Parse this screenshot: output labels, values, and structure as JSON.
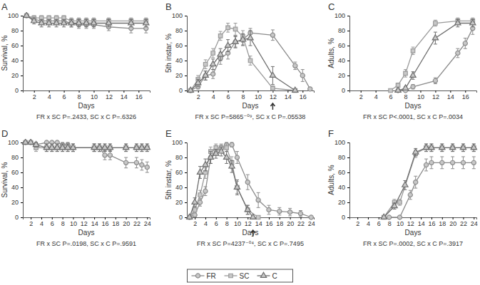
{
  "chart_data": [
    {
      "type": "line",
      "title": "A",
      "y_label": "Survival, %",
      "x_label": "Days",
      "subtitle": "FR x SC P=.2433, SC x C P=.6326",
      "xlim": [
        0.5,
        17.5
      ],
      "xticks": [
        2,
        4,
        6,
        8,
        10,
        12,
        14,
        16
      ],
      "ylim": [
        0,
        100
      ],
      "yticks": [
        0,
        20,
        40,
        60,
        80,
        100
      ],
      "series": [
        {
          "name": "FR",
          "color": "#8c8c8c",
          "marker": "circle",
          "x": [
            1,
            2,
            3,
            4,
            5,
            6,
            7,
            8,
            9,
            10,
            12,
            15,
            17
          ],
          "values": [
            100,
            95,
            93,
            93,
            93,
            93,
            90,
            88,
            88,
            88,
            85,
            83,
            83
          ],
          "errors": [
            0,
            3,
            4,
            4,
            4,
            4,
            5,
            5,
            5,
            5,
            5,
            6,
            6
          ]
        },
        {
          "name": "SC",
          "color": "#9a9a9a",
          "marker": "square",
          "x": [
            1,
            2,
            3,
            4,
            5,
            6,
            7,
            8,
            9,
            10,
            12,
            15,
            17
          ],
          "values": [
            100,
            97,
            97,
            97,
            97,
            97,
            93,
            93,
            93,
            93,
            93,
            93,
            93
          ],
          "errors": [
            0,
            3,
            3,
            3,
            3,
            3,
            4,
            4,
            4,
            4,
            4,
            4,
            4
          ]
        },
        {
          "name": "C",
          "color": "#6e6e6e",
          "marker": "triangle",
          "x": [
            1,
            2,
            3,
            4,
            5,
            6,
            7,
            8,
            9,
            10,
            12,
            15,
            17
          ],
          "values": [
            100,
            93,
            90,
            90,
            90,
            90,
            90,
            90,
            90,
            90,
            90,
            90,
            90
          ],
          "errors": [
            0,
            4,
            5,
            5,
            5,
            5,
            5,
            5,
            5,
            5,
            5,
            5,
            5
          ]
        }
      ]
    },
    {
      "type": "line",
      "title": "B",
      "y_label": "5th instar, %",
      "x_label": "Days",
      "subtitle": "FR x SC P=5865⁻⁰⁹, SC x C P=.05538",
      "arrow_x": 12,
      "xlim": [
        0.5,
        17.5
      ],
      "xticks": [
        2,
        4,
        6,
        8,
        10,
        12,
        14,
        16
      ],
      "ylim": [
        0,
        100
      ],
      "yticks": [
        0,
        20,
        40,
        60,
        80,
        100
      ],
      "series": [
        {
          "name": "FR",
          "color": "#8c8c8c",
          "marker": "circle",
          "x": [
            1,
            2,
            3,
            4,
            5,
            6,
            7,
            8,
            9,
            12,
            15,
            16,
            17
          ],
          "values": [
            0,
            5,
            20,
            22,
            43,
            50,
            65,
            68,
            77,
            74,
            33,
            20,
            2
          ],
          "errors": [
            0,
            3,
            6,
            6,
            8,
            8,
            7,
            7,
            6,
            7,
            5,
            8,
            2
          ]
        },
        {
          "name": "SC",
          "color": "#9a9a9a",
          "marker": "square",
          "x": [
            1,
            2,
            3,
            4,
            5,
            6,
            7,
            8,
            9,
            12,
            15
          ],
          "values": [
            0,
            15,
            35,
            50,
            73,
            84,
            82,
            72,
            40,
            3,
            0
          ],
          "errors": [
            0,
            5,
            6,
            6,
            6,
            6,
            8,
            8,
            6,
            3,
            0
          ]
        },
        {
          "name": "C",
          "color": "#6e6e6e",
          "marker": "triangle",
          "x": [
            1,
            2,
            3,
            4,
            5,
            6,
            7,
            8,
            9,
            12,
            15
          ],
          "values": [
            0,
            10,
            20,
            35,
            48,
            60,
            65,
            68,
            70,
            20,
            0
          ],
          "errors": [
            0,
            5,
            6,
            7,
            8,
            8,
            8,
            8,
            10,
            12,
            0
          ]
        }
      ]
    },
    {
      "type": "line",
      "title": "C",
      "y_label": "Adults, %",
      "x_label": "Days",
      "subtitle": "FR x SC P<.0001, SC x C P=.0034",
      "xlim": [
        0.5,
        17.5
      ],
      "xticks": [
        2,
        4,
        6,
        8,
        10,
        12,
        14,
        16
      ],
      "ylim": [
        0,
        100
      ],
      "yticks": [
        0,
        20,
        40,
        60,
        80,
        100
      ],
      "series": [
        {
          "name": "FR",
          "color": "#8c8c8c",
          "marker": "circle",
          "x": [
            7,
            8,
            9,
            12,
            15,
            16,
            17
          ],
          "values": [
            0,
            0,
            5,
            13,
            50,
            63,
            83
          ],
          "errors": [
            0,
            0,
            3,
            4,
            6,
            7,
            8
          ]
        },
        {
          "name": "SC",
          "color": "#9a9a9a",
          "marker": "square",
          "x": [
            6,
            7,
            8,
            9,
            12,
            15,
            17
          ],
          "values": [
            0,
            7,
            23,
            53,
            90,
            93,
            93
          ],
          "errors": [
            0,
            3,
            5,
            5,
            4,
            4,
            4
          ]
        },
        {
          "name": "C",
          "color": "#6e6e6e",
          "marker": "triangle",
          "x": [
            7,
            8,
            9,
            12,
            15,
            17
          ],
          "values": [
            0,
            3,
            20,
            70,
            90,
            90
          ],
          "errors": [
            0,
            2,
            5,
            8,
            5,
            5
          ]
        }
      ]
    },
    {
      "type": "line",
      "title": "D",
      "y_label": "Survival, %",
      "x_label": "Days",
      "subtitle": "FR x SC P=.0198, SC x C P=.9591",
      "xlim": [
        0.5,
        24.5
      ],
      "xticks": [
        2,
        4,
        6,
        8,
        10,
        12,
        14,
        16,
        18,
        20,
        22,
        24
      ],
      "ylim": [
        0,
        100
      ],
      "yticks": [
        0,
        20,
        40,
        60,
        80,
        100
      ],
      "series": [
        {
          "name": "FR",
          "color": "#8c8c8c",
          "marker": "circle",
          "x": [
            1,
            2,
            3,
            5,
            6,
            7,
            8,
            9,
            10,
            14,
            15,
            16,
            17,
            20,
            22,
            23,
            24
          ],
          "values": [
            100,
            100,
            97,
            100,
            100,
            100,
            97,
            97,
            93,
            93,
            93,
            83,
            83,
            73,
            73,
            70,
            67
          ],
          "errors": [
            0,
            0,
            3,
            0,
            0,
            0,
            3,
            3,
            5,
            5,
            5,
            6,
            6,
            7,
            7,
            7,
            7
          ]
        },
        {
          "name": "SC",
          "color": "#9a9a9a",
          "marker": "square",
          "x": [
            1,
            2,
            3,
            5,
            6,
            7,
            8,
            9,
            10,
            14,
            15,
            16,
            17,
            20,
            22,
            23,
            24
          ],
          "values": [
            100,
            100,
            93,
            93,
            93,
            93,
            93,
            93,
            93,
            93,
            93,
            93,
            93,
            93,
            93,
            93,
            93
          ],
          "errors": [
            0,
            0,
            5,
            5,
            5,
            5,
            5,
            5,
            5,
            5,
            5,
            5,
            5,
            5,
            5,
            5,
            5
          ]
        },
        {
          "name": "C",
          "color": "#6e6e6e",
          "marker": "triangle",
          "x": [
            1,
            2,
            3,
            5,
            6,
            7,
            8,
            9,
            10,
            14,
            15,
            16,
            17,
            20,
            22,
            23,
            24
          ],
          "values": [
            100,
            100,
            97,
            93,
            93,
            93,
            93,
            93,
            93,
            93,
            93,
            93,
            93,
            93,
            93,
            93,
            93
          ],
          "errors": [
            0,
            0,
            3,
            5,
            5,
            5,
            5,
            5,
            5,
            5,
            5,
            5,
            5,
            5,
            5,
            5,
            5
          ]
        }
      ]
    },
    {
      "type": "line",
      "title": "E",
      "y_label": "5th instar, %",
      "x_label": "Days",
      "subtitle": "FR x SC P=4237⁻⁰⁴, SC x C P=.7495",
      "arrow_x": 13,
      "legend": "bottom",
      "xlim": [
        0.5,
        24.5
      ],
      "xticks": [
        2,
        4,
        6,
        8,
        10,
        12,
        14,
        16,
        18,
        20,
        22,
        24
      ],
      "ylim": [
        0,
        100
      ],
      "yticks": [
        0,
        20,
        40,
        60,
        80,
        100
      ],
      "series": [
        {
          "name": "FR",
          "color": "#8c8c8c",
          "marker": "circle",
          "x": [
            1,
            2,
            3,
            4,
            5,
            6,
            7,
            8,
            9,
            10,
            12,
            14,
            16,
            18,
            20,
            22,
            24
          ],
          "values": [
            0,
            3,
            20,
            35,
            80,
            90,
            92,
            97,
            97,
            80,
            47,
            23,
            10,
            8,
            7,
            5,
            0
          ],
          "errors": [
            0,
            2,
            5,
            6,
            8,
            6,
            5,
            3,
            3,
            8,
            10,
            10,
            6,
            5,
            5,
            4,
            0
          ]
        },
        {
          "name": "SC",
          "color": "#9a9a9a",
          "marker": "square",
          "x": [
            1,
            2,
            3,
            4,
            5,
            6,
            7,
            8,
            9,
            10,
            12,
            14
          ],
          "values": [
            0,
            10,
            30,
            60,
            88,
            93,
            93,
            93,
            73,
            40,
            10,
            0
          ],
          "errors": [
            0,
            4,
            6,
            8,
            6,
            5,
            5,
            5,
            8,
            8,
            6,
            0
          ]
        },
        {
          "name": "C",
          "color": "#6e6e6e",
          "marker": "triangle",
          "x": [
            1,
            2,
            3,
            4,
            5,
            6,
            7,
            8,
            9,
            10,
            12,
            13
          ],
          "values": [
            0,
            20,
            60,
            70,
            80,
            85,
            88,
            80,
            68,
            40,
            10,
            0
          ],
          "errors": [
            0,
            6,
            8,
            8,
            8,
            6,
            6,
            8,
            8,
            10,
            6,
            0
          ]
        }
      ]
    },
    {
      "type": "line",
      "title": "F",
      "y_label": "Adults, %",
      "x_label": "Days",
      "subtitle": "FR x SC P=.0002, SC x C P=.3917",
      "xlim": [
        0.5,
        24.5
      ],
      "xticks": [
        2,
        4,
        6,
        8,
        10,
        12,
        14,
        16,
        18,
        20,
        22,
        24
      ],
      "ylim": [
        0,
        100
      ],
      "yticks": [
        0,
        20,
        40,
        60,
        80,
        100
      ],
      "series": [
        {
          "name": "FR",
          "color": "#8c8c8c",
          "marker": "circle",
          "x": [
            8,
            10,
            12,
            13,
            15,
            16,
            18,
            20,
            22,
            24
          ],
          "values": [
            0,
            0,
            30,
            47,
            70,
            73,
            73,
            73,
            73,
            73
          ],
          "errors": [
            0,
            0,
            6,
            8,
            8,
            8,
            8,
            8,
            8,
            8
          ]
        },
        {
          "name": "SC",
          "color": "#9a9a9a",
          "marker": "square",
          "x": [
            7,
            9,
            10,
            13,
            15,
            16,
            18,
            20,
            22,
            24
          ],
          "values": [
            0,
            20,
            20,
            85,
            93,
            93,
            93,
            93,
            93,
            93
          ],
          "errors": [
            0,
            4,
            4,
            5,
            5,
            5,
            5,
            5,
            5,
            5
          ]
        },
        {
          "name": "C",
          "color": "#6e6e6e",
          "marker": "triangle",
          "x": [
            7,
            9,
            11,
            13,
            15,
            16,
            18,
            20,
            22,
            24
          ],
          "values": [
            0,
            15,
            43,
            87,
            93,
            93,
            93,
            93,
            93,
            93
          ],
          "errors": [
            0,
            4,
            6,
            5,
            5,
            5,
            5,
            5,
            5,
            5
          ]
        }
      ]
    }
  ]
}
